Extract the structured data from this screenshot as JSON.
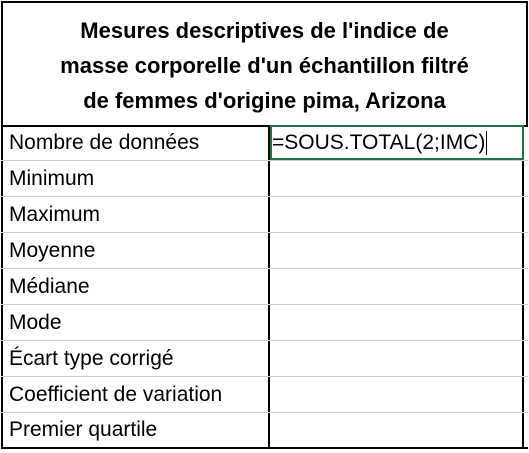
{
  "title": {
    "line1": "Mesures descriptives de l'indice de",
    "line2": "masse corporelle d'un échantillon filtré",
    "line3": "de femmes d'origine pima, Arizona"
  },
  "rows": [
    {
      "label": "Nombre de données",
      "value": "=SOUS.TOTAL(2;IMC)"
    },
    {
      "label": "Minimum",
      "value": ""
    },
    {
      "label": "Maximum",
      "value": ""
    },
    {
      "label": "Moyenne",
      "value": ""
    },
    {
      "label": "Médiane",
      "value": ""
    },
    {
      "label": "Mode",
      "value": ""
    },
    {
      "label": "Écart type corrigé",
      "value": ""
    },
    {
      "label": "Coefficient de variation",
      "value": ""
    },
    {
      "label": "Premier quartile",
      "value": ""
    }
  ],
  "colors": {
    "active_cell_border": "#217346",
    "grid_border": "#000000",
    "inner_gridline": "#d0d0d0"
  }
}
